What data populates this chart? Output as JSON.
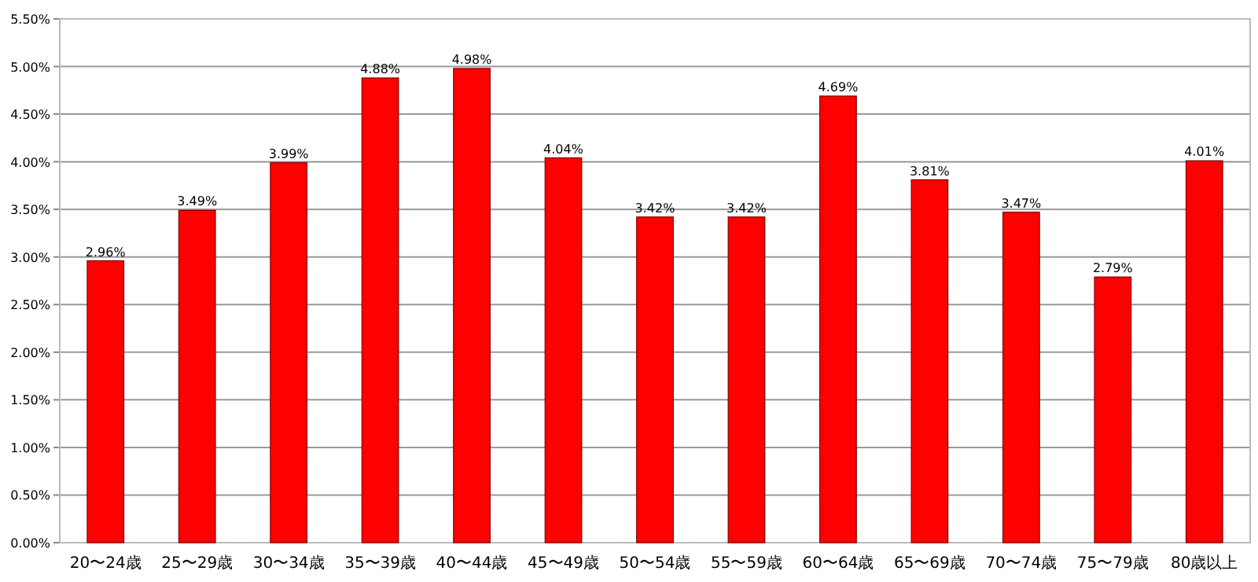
{
  "chart_data": {
    "type": "bar",
    "categories": [
      "20〜24歳",
      "25〜29歳",
      "30〜34歳",
      "35〜39歳",
      "40〜44歳",
      "45〜49歳",
      "50〜54歳",
      "55〜59歳",
      "60〜64歳",
      "65〜69歳",
      "70〜74歳",
      "75〜79歳",
      "80歳以上"
    ],
    "values": [
      2.96,
      3.49,
      3.99,
      4.88,
      4.98,
      4.04,
      3.42,
      3.42,
      4.69,
      3.81,
      3.47,
      2.79,
      4.01
    ],
    "value_labels": [
      "2.96%",
      "3.49%",
      "3.99%",
      "4.88%",
      "4.98%",
      "4.04%",
      "3.42%",
      "3.42%",
      "4.69%",
      "3.81%",
      "3.47%",
      "2.79%",
      "4.01%"
    ],
    "color": "#ff0000",
    "ylim": [
      0,
      5.5
    ],
    "yticks": [
      {
        "value": 0,
        "label": "0.00%"
      },
      {
        "value": 0.5,
        "label": "0.50%"
      },
      {
        "value": 1,
        "label": "1.00%"
      },
      {
        "value": 1.5,
        "label": "1.50%"
      },
      {
        "value": 2,
        "label": "2.00%"
      },
      {
        "value": 2.5,
        "label": "2.50%"
      },
      {
        "value": 3,
        "label": "3.00%"
      },
      {
        "value": 3.5,
        "label": "3.50%"
      },
      {
        "value": 4,
        "label": "4.00%"
      },
      {
        "value": 4.5,
        "label": "4.50%"
      },
      {
        "value": 5,
        "label": "5.00%"
      },
      {
        "value": 5.5,
        "label": "5.50%"
      }
    ],
    "grid": "y"
  }
}
